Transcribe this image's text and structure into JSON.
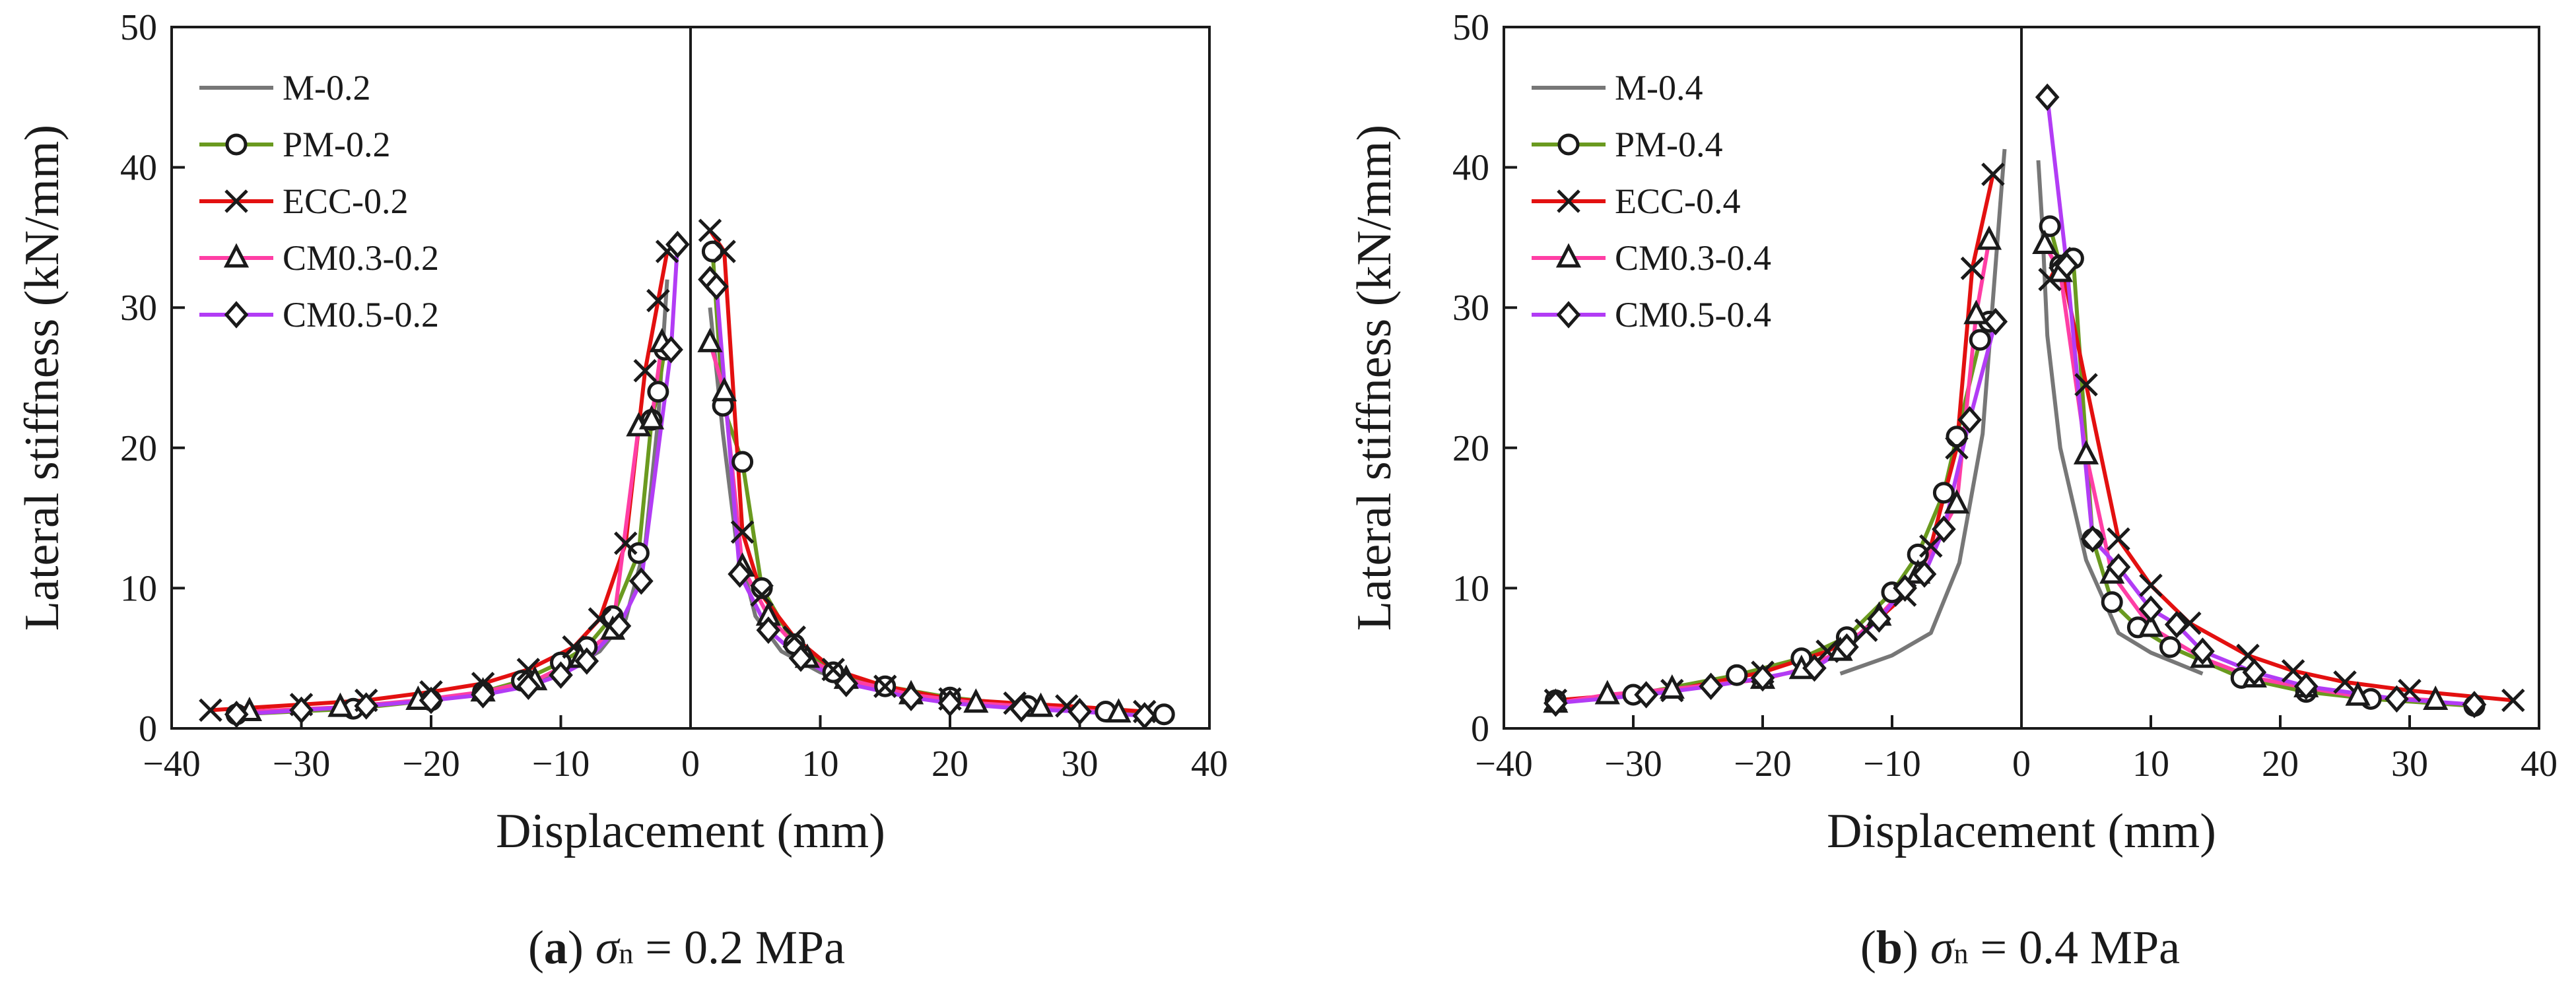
{
  "chart_data": [
    {
      "type": "line",
      "caption": {
        "letter": "(a)",
        "symbol": "σ",
        "sub": "n",
        "rest": "= 0.2 MPa"
      },
      "xlabel": "Displacement (mm)",
      "ylabel": "Lateral stiffness (kN/mm)",
      "xlim": [
        -40,
        40
      ],
      "ylim": [
        0,
        50
      ],
      "xticks": [
        -40,
        -30,
        -20,
        -10,
        0,
        10,
        20,
        30,
        40
      ],
      "yticks": [
        0,
        10,
        20,
        30,
        40,
        50
      ],
      "xtick_labels": [
        "−40",
        "−30",
        "−20",
        "−10",
        "0",
        "10",
        "20",
        "30",
        "40"
      ],
      "ytick_labels": [
        "0",
        "10",
        "20",
        "30",
        "40",
        "50"
      ],
      "grid": false,
      "legend_position": "top-left",
      "series": [
        {
          "name": "M-0.2",
          "color": "#777777",
          "marker": "none",
          "x": [
            -35,
            -30,
            -25,
            -20,
            -15,
            -10,
            -7,
            -5,
            -3.5,
            -2.5,
            -1.8,
            null,
            1.5,
            2.5,
            3.5,
            5,
            7,
            10,
            15,
            20,
            25,
            30,
            35
          ],
          "y": [
            1.1,
            1.3,
            1.6,
            2.0,
            2.6,
            3.9,
            5.5,
            7.8,
            13.0,
            22.0,
            32.0,
            null,
            30.0,
            21.0,
            13.5,
            8.0,
            5.5,
            4.0,
            2.6,
            2.0,
            1.6,
            1.3,
            1.1
          ]
        },
        {
          "name": "PM-0.2",
          "color": "#6a9a1f",
          "marker": "circle",
          "x": [
            -35,
            -26,
            -20,
            -16,
            -13,
            -10,
            -8,
            -6,
            -4,
            -3,
            -2.5,
            -2,
            null,
            1.7,
            2.5,
            4,
            5.5,
            8,
            11,
            15,
            20,
            26,
            32,
            36.5
          ],
          "y": [
            1.0,
            1.4,
            2.0,
            2.6,
            3.4,
            4.7,
            5.8,
            8.0,
            12.5,
            22.0,
            24.0,
            27.0,
            null,
            34.0,
            23.0,
            19.0,
            10.0,
            6.0,
            4.0,
            3.0,
            2.2,
            1.6,
            1.2,
            1.0
          ]
        },
        {
          "name": "ECC-0.2",
          "color": "#e31010",
          "marker": "x",
          "x": [
            -37,
            -30,
            -25,
            -20,
            -16,
            -12.5,
            -9,
            -7,
            -5,
            -3.5,
            -2.5,
            -1.8,
            null,
            1.5,
            2.6,
            4,
            5.5,
            8,
            11,
            15,
            20,
            25,
            29,
            35
          ],
          "y": [
            1.3,
            1.7,
            2.0,
            2.6,
            3.2,
            4.2,
            5.8,
            7.8,
            13.2,
            25.5,
            30.5,
            34.0,
            null,
            35.5,
            34.0,
            14.0,
            9.5,
            6.5,
            4.2,
            3.0,
            2.1,
            1.8,
            1.6,
            1.2
          ]
        },
        {
          "name": "CM0.3-0.2",
          "color": "#ff3ea5",
          "marker": "triangle",
          "x": [
            -34,
            -27,
            -21,
            -16,
            -12,
            -8.5,
            -6,
            -4,
            -3,
            -2.2,
            null,
            1.5,
            2.6,
            4,
            6,
            9,
            12,
            17,
            22,
            27,
            33
          ],
          "y": [
            1.2,
            1.5,
            2.0,
            2.6,
            3.4,
            5.0,
            7.0,
            21.5,
            22.0,
            27.5,
            null,
            27.5,
            24.0,
            11.5,
            8.0,
            5.0,
            3.5,
            2.4,
            1.8,
            1.5,
            1.1
          ]
        },
        {
          "name": "CM0.5-0.2",
          "color": "#b23cf5",
          "marker": "diamond",
          "x": [
            -35,
            -30,
            -25,
            -20,
            -16,
            -12.5,
            -10,
            -8,
            -5.5,
            -3.8,
            -1.5,
            -1,
            null,
            1.5,
            2,
            3.8,
            6,
            8.5,
            12,
            17,
            20,
            25.5,
            30,
            35
          ],
          "y": [
            1.0,
            1.3,
            1.6,
            2.0,
            2.4,
            3.0,
            3.8,
            4.8,
            7.3,
            10.5,
            27.0,
            34.5,
            null,
            32.0,
            31.5,
            11.0,
            7.0,
            5.0,
            3.2,
            2.2,
            1.8,
            1.4,
            1.2,
            0.9
          ]
        }
      ]
    },
    {
      "type": "line",
      "caption": {
        "letter": "(b)",
        "symbol": "σ",
        "sub": "n",
        "rest": "= 0.4 MPa"
      },
      "xlabel": "Displacement (mm)",
      "ylabel": "Lateral stiffness (kN/mm)",
      "xlim": [
        -40,
        40
      ],
      "ylim": [
        0,
        50
      ],
      "xticks": [
        -40,
        -30,
        -20,
        -10,
        0,
        10,
        20,
        30,
        40
      ],
      "yticks": [
        0,
        10,
        20,
        30,
        40,
        50
      ],
      "xtick_labels": [
        "−40",
        "−30",
        "−20",
        "−10",
        "0",
        "10",
        "20",
        "30",
        "40"
      ],
      "ytick_labels": [
        "0",
        "10",
        "20",
        "30",
        "40",
        "50"
      ],
      "grid": false,
      "legend_position": "top-left",
      "series": [
        {
          "name": "M-0.4",
          "color": "#777777",
          "marker": "none",
          "x": [
            -14,
            -10,
            -7,
            -4.8,
            -3,
            -2,
            -1.5,
            -1.3,
            null,
            1.3,
            1.6,
            2,
            3,
            5,
            7.5,
            10,
            14
          ],
          "y": [
            3.9,
            5.2,
            6.8,
            11.8,
            21.0,
            33.0,
            39.0,
            41.3,
            null,
            40.5,
            36.0,
            28.0,
            20.0,
            12.0,
            6.8,
            5.4,
            3.9
          ]
        },
        {
          "name": "PM-0.4",
          "color": "#6a9a1f",
          "marker": "circle",
          "x": [
            -36,
            -30,
            -22,
            -17,
            -13.5,
            -10,
            -8,
            -6,
            -5,
            -3.2,
            -2.5,
            null,
            2.2,
            3,
            4,
            5.5,
            7,
            9,
            11.5,
            17,
            22,
            27,
            35
          ],
          "y": [
            2.0,
            2.4,
            3.8,
            5.0,
            6.5,
            9.7,
            12.4,
            16.8,
            20.8,
            27.7,
            29.0,
            null,
            35.8,
            33.0,
            33.5,
            13.5,
            9.0,
            7.2,
            5.8,
            3.6,
            2.6,
            2.1,
            1.6
          ]
        },
        {
          "name": "ECC-0.4",
          "color": "#e31010",
          "marker": "x",
          "x": [
            -36,
            -27,
            -20,
            -15,
            -12,
            -9,
            -7,
            -5,
            -3.8,
            -2.2,
            null,
            2.2,
            3,
            5,
            7.5,
            10,
            13,
            17.5,
            21,
            25,
            30,
            38
          ],
          "y": [
            2.0,
            2.7,
            4.0,
            5.5,
            7.0,
            9.5,
            13.0,
            20.0,
            32.8,
            39.5,
            null,
            32.0,
            33.5,
            24.5,
            13.5,
            10.2,
            7.5,
            5.2,
            4.1,
            3.3,
            2.7,
            2.0
          ]
        },
        {
          "name": "CM0.3-0.4",
          "color": "#ff3ea5",
          "marker": "triangle",
          "x": [
            -36,
            -32,
            -27,
            -20,
            -17,
            -14,
            -11,
            -8,
            -5,
            -3.5,
            -2.5,
            null,
            1.8,
            3,
            5,
            7,
            10,
            14,
            18,
            22,
            26,
            32
          ],
          "y": [
            1.8,
            2.4,
            2.8,
            3.5,
            4.2,
            5.5,
            8.0,
            11.0,
            16.0,
            29.5,
            34.8,
            null,
            34.5,
            32.5,
            19.5,
            11.0,
            7.2,
            5.0,
            3.6,
            2.9,
            2.3,
            2.0
          ]
        },
        {
          "name": "CM0.5-0.4",
          "color": "#b23cf5",
          "marker": "diamond",
          "x": [
            -36,
            -29,
            -24,
            -20,
            -16,
            -13.5,
            -11,
            -9,
            -7.5,
            -6,
            -4,
            -2,
            null,
            2,
            3.5,
            5.5,
            7.5,
            10,
            12,
            14,
            18,
            22,
            29,
            35
          ],
          "y": [
            1.8,
            2.4,
            3.0,
            3.6,
            4.3,
            5.8,
            7.8,
            10.0,
            11.0,
            14.2,
            22.0,
            29.0,
            null,
            45.0,
            33.0,
            13.5,
            11.5,
            8.5,
            7.4,
            5.5,
            4.0,
            3.0,
            2.1,
            1.7
          ]
        }
      ]
    }
  ]
}
